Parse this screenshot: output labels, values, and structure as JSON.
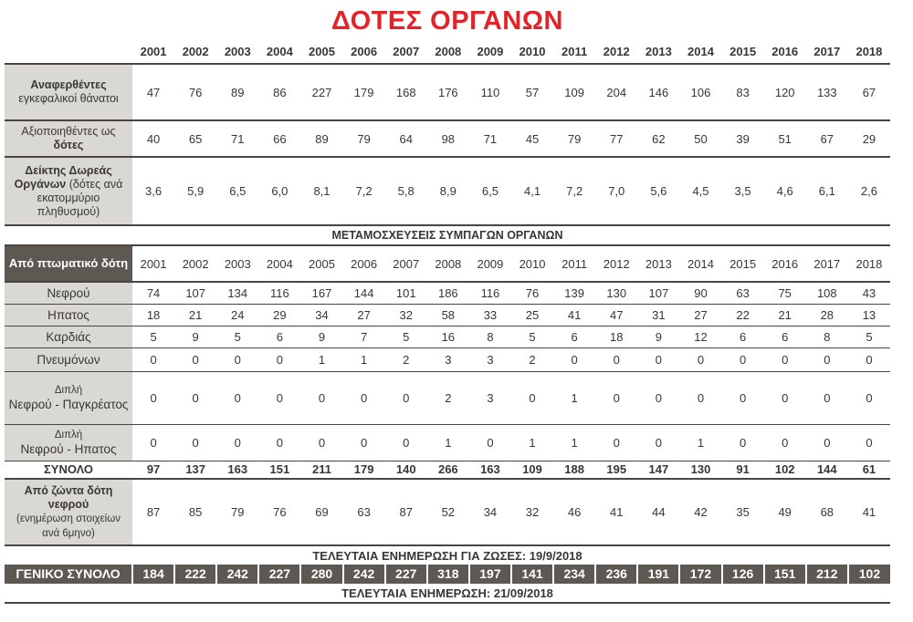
{
  "title": "ΔΟΤΕΣ ΟΡΓΑΝΩΝ",
  "years": [
    "2001",
    "2002",
    "2003",
    "2004",
    "2005",
    "2006",
    "2007",
    "2008",
    "2009",
    "2010",
    "2011",
    "2012",
    "2013",
    "2014",
    "2015",
    "2016",
    "2017",
    "2018"
  ],
  "donors": [
    {
      "label_bold": "Αναφερθέντες",
      "label_rest": "εγκεφαλικοί θάνατοι",
      "label_order": "bold-first",
      "values": [
        "47",
        "76",
        "89",
        "86",
        "227",
        "179",
        "168",
        "176",
        "110",
        "57",
        "109",
        "204",
        "146",
        "106",
        "83",
        "120",
        "133",
        "67"
      ]
    },
    {
      "label_bold": "δότες",
      "label_rest": "Αξιοποιηθέντες ως",
      "label_order": "rest-first",
      "values": [
        "40",
        "65",
        "71",
        "66",
        "89",
        "79",
        "64",
        "98",
        "71",
        "45",
        "79",
        "77",
        "62",
        "50",
        "39",
        "51",
        "67",
        "29"
      ]
    },
    {
      "label_bold": "Δείκτης Δωρεάς Οργάνων",
      "label_rest": "(δότες ανά εκατομμύριο πληθυσμού)",
      "label_order": "bold-first",
      "values": [
        "3,6",
        "5,9",
        "6,5",
        "6,0",
        "8,1",
        "7,2",
        "5,8",
        "8,9",
        "6,5",
        "4,1",
        "7,2",
        "7,0",
        "5,6",
        "4,5",
        "3,5",
        "4,6",
        "6,1",
        "2,6"
      ]
    }
  ],
  "section_title": "ΜΕΤΑΜΟΣΧΕΥΣΕΙΣ ΣΥΜΠΑΓΩΝ ΟΡΓΑΝΩΝ",
  "transplants_header": "Από πτωματικό δότη",
  "transplants": [
    {
      "label": "Νεφρού",
      "values": [
        "74",
        "107",
        "134",
        "116",
        "167",
        "144",
        "101",
        "186",
        "116",
        "76",
        "139",
        "130",
        "107",
        "90",
        "63",
        "75",
        "108",
        "43"
      ]
    },
    {
      "label": "Ηπατος",
      "values": [
        "18",
        "21",
        "24",
        "29",
        "34",
        "27",
        "32",
        "58",
        "33",
        "25",
        "41",
        "47",
        "31",
        "27",
        "22",
        "21",
        "28",
        "13"
      ]
    },
    {
      "label": "Καρδιάς",
      "values": [
        "5",
        "9",
        "5",
        "6",
        "9",
        "7",
        "5",
        "16",
        "8",
        "5",
        "6",
        "18",
        "9",
        "12",
        "6",
        "6",
        "8",
        "5"
      ]
    },
    {
      "label": "Πνευμόνων",
      "values": [
        "0",
        "0",
        "0",
        "0",
        "1",
        "1",
        "2",
        "3",
        "3",
        "2",
        "0",
        "0",
        "0",
        "0",
        "0",
        "0",
        "0",
        "0"
      ]
    },
    {
      "label_small": "Διπλή",
      "label": "Νεφρού - Παγκρέατος",
      "values": [
        "0",
        "0",
        "0",
        "0",
        "0",
        "0",
        "0",
        "2",
        "3",
        "0",
        "1",
        "0",
        "0",
        "0",
        "0",
        "0",
        "0",
        "0"
      ]
    },
    {
      "label_small": "Διπλή",
      "label": "Νεφρού - Ηπατος",
      "values": [
        "0",
        "0",
        "0",
        "0",
        "0",
        "0",
        "0",
        "1",
        "0",
        "1",
        "1",
        "0",
        "0",
        "1",
        "0",
        "0",
        "0",
        "0"
      ]
    }
  ],
  "total": {
    "label": "ΣΥΝΟΛΟ",
    "values": [
      "97",
      "137",
      "163",
      "151",
      "211",
      "179",
      "140",
      "266",
      "163",
      "109",
      "188",
      "195",
      "147",
      "130",
      "91",
      "102",
      "144",
      "61"
    ]
  },
  "living": {
    "label_bold": "Από ζώντα δότη νεφρού",
    "label_rest": "(ενημέρωση στοιχείων ανά 6μηνο)",
    "values": [
      "87",
      "85",
      "79",
      "76",
      "69",
      "63",
      "87",
      "52",
      "34",
      "32",
      "46",
      "41",
      "44",
      "42",
      "35",
      "49",
      "68",
      "41"
    ]
  },
  "living_update": "ΤΕΛΕΥΤΑΙΑ ΕΝΗΜΕΡΩΣΗ ΓΙΑ ΖΩΣΕΣ: 19/9/2018",
  "grand_total": {
    "label": "ΓΕΝΙΚΟ ΣΥΝΟΛΟ",
    "values": [
      "184",
      "222",
      "242",
      "227",
      "280",
      "242",
      "227",
      "318",
      "197",
      "141",
      "234",
      "236",
      "191",
      "172",
      "126",
      "151",
      "212",
      "102"
    ]
  },
  "last_update": "ΤΕΛΕΥΤΑΙΑ ΕΝΗΜΕΡΩΣΗ: 21/09/2018",
  "colors": {
    "title": "#e3232a",
    "dark": "#5e5853",
    "label_bg": "#d9d8d5"
  }
}
